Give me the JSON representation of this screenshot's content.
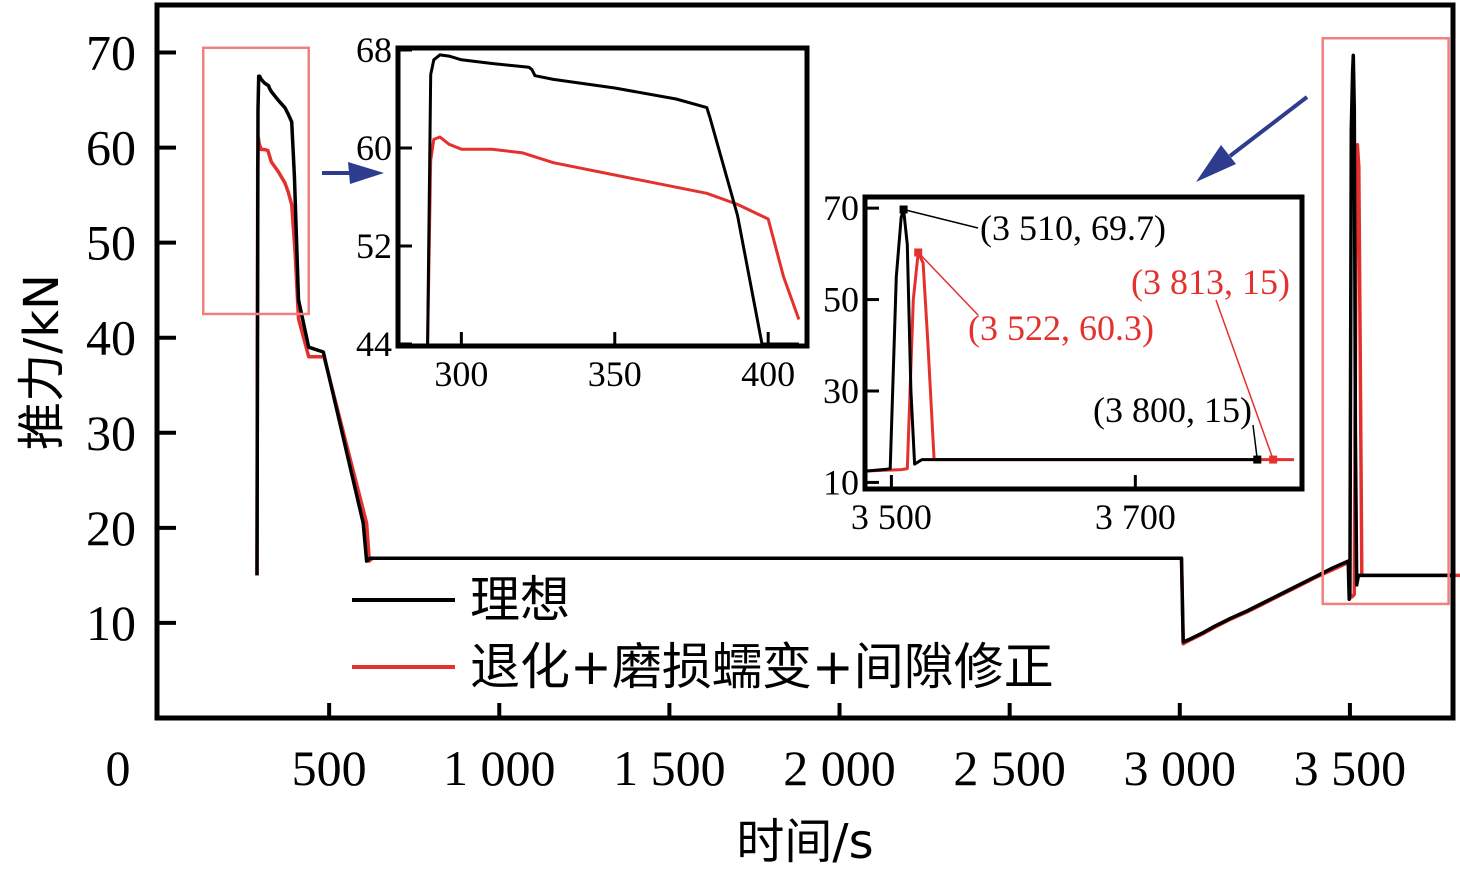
{
  "chart_data": {
    "type": "line",
    "xlabel": "时间/s",
    "ylabel": "推力/kN",
    "xlim": [
      0,
      3800
    ],
    "ylim": [
      0,
      75
    ],
    "xticks": [
      {
        "v": 0,
        "t": "0"
      },
      {
        "v": 500,
        "t": "500"
      },
      {
        "v": 1000,
        "t": "1 000"
      },
      {
        "v": 1500,
        "t": "1 500"
      },
      {
        "v": 2000,
        "t": "2 000"
      },
      {
        "v": 2500,
        "t": "2 500"
      },
      {
        "v": 3000,
        "t": "3 000"
      },
      {
        "v": 3500,
        "t": "3 500"
      }
    ],
    "yticks": [
      {
        "v": 10,
        "t": "10"
      },
      {
        "v": 20,
        "t": "20"
      },
      {
        "v": 30,
        "t": "30"
      },
      {
        "v": 40,
        "t": "40"
      },
      {
        "v": 50,
        "t": "50"
      },
      {
        "v": 60,
        "t": "60"
      },
      {
        "v": 70,
        "t": "70"
      }
    ],
    "legend_position": "bottom-left",
    "series": [
      {
        "name": "理想",
        "color": "#000000",
        "x": [
          288,
          291,
          293,
          296,
          300,
          310,
          322,
          324,
          330,
          350,
          370,
          380,
          390,
          398,
          410,
          440,
          483,
          600,
          610,
          620,
          3000,
          3003,
          3005,
          3010,
          3030,
          3070,
          3100,
          3150,
          3200,
          3250,
          3300,
          3350,
          3400,
          3450,
          3495,
          3498,
          3500,
          3504,
          3508,
          3510,
          3513,
          3516,
          3520,
          3525,
          3800
        ],
        "y": [
          15,
          64,
          67.5,
          67.5,
          67.2,
          66.8,
          66.5,
          66.3,
          65.9,
          65,
          64.2,
          63.5,
          62.7,
          57,
          44,
          39,
          38.5,
          20.5,
          16.5,
          16.8,
          16.8,
          16.8,
          16.8,
          8,
          8.3,
          9,
          9.6,
          10.5,
          11.3,
          12.2,
          13.1,
          14,
          14.9,
          15.8,
          16.5,
          12.5,
          13,
          62,
          68,
          69.7,
          64,
          30,
          14,
          15,
          15
        ]
      },
      {
        "name": "退化+磨损蠕变+间隙修正",
        "color": "#e4312e",
        "x": [
          288,
          290,
          292,
          294,
          300,
          310,
          320,
          330,
          350,
          370,
          380,
          390,
          400,
          410,
          440,
          485,
          610,
          618,
          620,
          628,
          3005,
          3010,
          3030,
          3070,
          3100,
          3150,
          3200,
          3250,
          3300,
          3350,
          3400,
          3450,
          3498,
          3500,
          3508,
          3513,
          3518,
          3522,
          3526,
          3530,
          3535,
          3540,
          3813,
          3830
        ],
        "y": [
          15,
          58,
          61,
          60.5,
          59.8,
          59.8,
          59.7,
          58.5,
          57.5,
          56.3,
          55.3,
          54,
          49,
          42,
          38,
          38,
          20.5,
          16.5,
          16.6,
          16.8,
          16.8,
          7.8,
          8.2,
          8.9,
          9.5,
          10.4,
          11.2,
          12.1,
          13,
          13.9,
          14.8,
          15.6,
          16.4,
          12.6,
          12.8,
          13,
          50,
          60.3,
          58,
          40,
          15,
          15,
          15,
          15
        ]
      }
    ],
    "zoom_boxes": [
      {
        "x0": 130,
        "x1": 440,
        "y0": 42.5,
        "y1": 70.5
      },
      {
        "x0": 3420,
        "x1": 3790,
        "y0": 12,
        "y1": 71.5
      }
    ],
    "insets": [
      {
        "id": "inset1",
        "xlim": [
          280,
          412
        ],
        "ylim": [
          44,
          68
        ],
        "xticks": [
          {
            "v": 300,
            "t": "300"
          },
          {
            "v": 350,
            "t": "350"
          },
          {
            "v": 400,
            "t": "400"
          }
        ],
        "yticks": [
          {
            "v": 44,
            "t": "44"
          },
          {
            "v": 52,
            "t": "52"
          },
          {
            "v": 60,
            "t": "60"
          },
          {
            "v": 68,
            "t": "68"
          }
        ],
        "series": [
          {
            "name": "理想",
            "x": [
              289,
              290,
              291,
              293,
              296,
              300,
              310,
              322,
              323,
              324,
              330,
              350,
              370,
              380,
              381,
              390,
              398,
              410
            ],
            "y": [
              44,
              66,
              67.2,
              67.6,
              67.5,
              67.2,
              66.9,
              66.6,
              66.4,
              65.9,
              65.6,
              64.9,
              64,
              63.3,
              62.5,
              54.5,
              44,
              44
            ]
          },
          {
            "name": "退化+磨损蠕变+间隙修正",
            "x": [
              289,
              290,
              291,
              293,
              296,
              300,
              310,
              320,
              330,
              350,
              370,
              380,
              390,
              400,
              405,
              410
            ],
            "y": [
              44,
              59,
              60.7,
              60.9,
              60.3,
              59.9,
              59.9,
              59.6,
              58.8,
              57.8,
              56.8,
              56.3,
              55.4,
              54.2,
              49.5,
              46
            ]
          }
        ]
      },
      {
        "id": "inset2",
        "xlim": [
          3480,
          3835
        ],
        "ylim": [
          9,
          72
        ],
        "xticks": [
          {
            "v": 3500,
            "t": "3 500"
          },
          {
            "v": 3700,
            "t": "3 700"
          }
        ],
        "yticks": [
          {
            "v": 10,
            "t": "10"
          },
          {
            "v": 30,
            "t": "30"
          },
          {
            "v": 50,
            "t": "50"
          },
          {
            "v": 70,
            "t": "70"
          }
        ],
        "series": [
          {
            "name": "理想",
            "x": [
              3480,
              3496,
              3499,
              3504,
              3508,
              3510,
              3513,
              3516,
              3519,
              3525,
              3800
            ],
            "y": [
              12.5,
              12.9,
              13,
              55,
              68,
              69.7,
              62,
              30,
              14,
              15,
              15
            ]
          },
          {
            "name": "退化+磨损蠕变+间隙修正",
            "x": [
              3480,
              3508,
              3513,
              3518,
              3522,
              3526,
              3530,
              3535,
              3540,
              3800,
              3830
            ],
            "y": [
              12.5,
              12.8,
              13,
              50,
              60.3,
              58,
              40,
              15,
              15,
              15,
              15
            ]
          }
        ],
        "annotations": [
          {
            "text": "(3 510, 69.7)",
            "color": "#000000",
            "x": 3510,
            "y": 69.7
          },
          {
            "text": "(3 522, 60.3)",
            "color": "#e4312e",
            "x": 3522,
            "y": 60.3
          },
          {
            "text": "(3 813, 15)",
            "color": "#e4312e",
            "x": 3813,
            "y": 15
          },
          {
            "text": "(3 800, 15)",
            "color": "#000000",
            "x": 3800,
            "y": 15
          }
        ]
      }
    ]
  }
}
